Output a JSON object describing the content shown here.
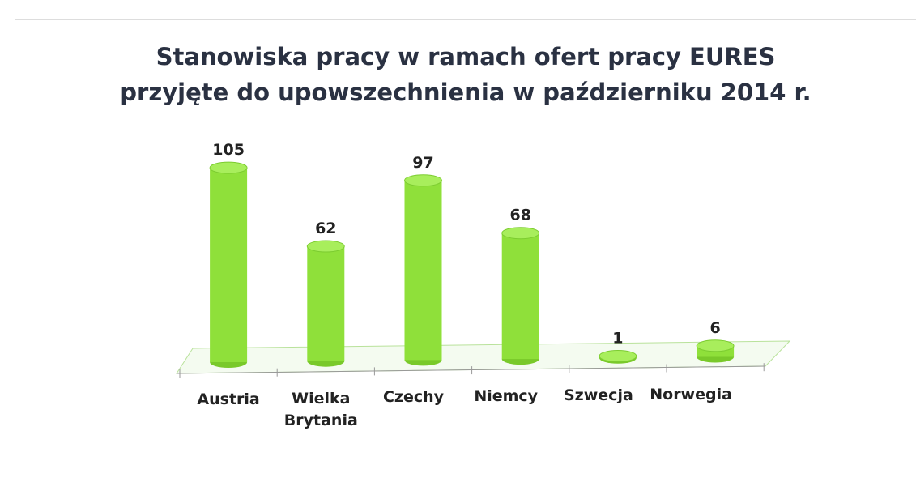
{
  "chart_data": {
    "type": "bar3d",
    "title": "Stanowiska pracy w ramach ofert pracy EURES przyjęte do upowszechnienia w październiku 2014 r.",
    "categories": [
      "Austria",
      "Wielka Brytania",
      "Czechy",
      "Niemcy",
      "Szwecja",
      "Norwegia"
    ],
    "values": [
      105,
      62,
      97,
      68,
      1,
      6
    ],
    "color": "#8fe03a"
  }
}
